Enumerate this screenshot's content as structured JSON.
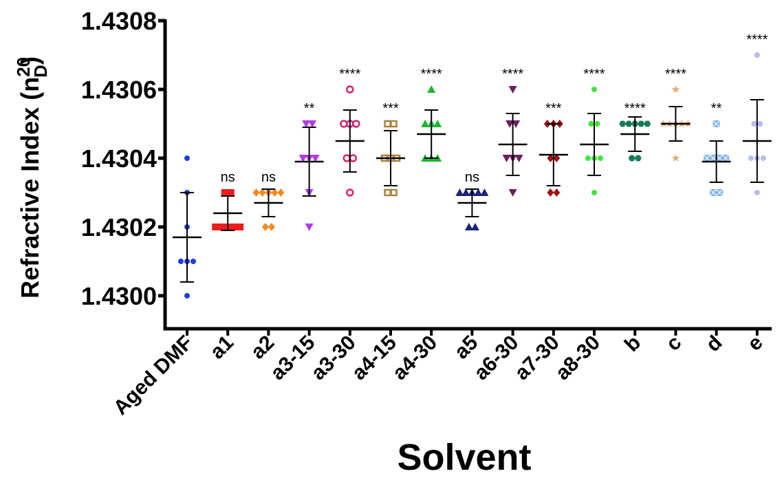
{
  "chart_data": {
    "type": "scatter",
    "xlabel": "Solvent",
    "ylabel": {
      "text": "Refractive Index (n",
      "sup": "20",
      "sub": "D",
      "close": ")"
    },
    "ylim": [
      1.42999,
      1.4308
    ],
    "yticks": [
      "1.4300",
      "1.4302",
      "1.4304",
      "1.4306",
      "1.4308"
    ],
    "ytick_values": [
      1.43,
      1.4302,
      1.4304,
      1.4306,
      1.4308
    ],
    "grid": false,
    "legend": "none",
    "categories": [
      {
        "label": "Aged DMF",
        "marker": "circle",
        "color": "#1f3fe0",
        "mean": 1.43017,
        "sd": 0.00013,
        "sig": "",
        "points": [
          1.4304,
          1.4303,
          1.4302,
          1.4301,
          1.4301,
          1.4301,
          1.43
        ]
      },
      {
        "label": "a1",
        "marker": "square",
        "color": "#ee1c1c",
        "mean": 1.43024,
        "sd": 5e-05,
        "sig": "ns",
        "points": [
          1.4303,
          1.4303,
          1.4302,
          1.4302,
          1.4302,
          1.4302,
          1.4302
        ]
      },
      {
        "label": "a2",
        "marker": "diamond",
        "color": "#f58a1f",
        "mean": 1.43027,
        "sd": 4e-05,
        "sig": "ns",
        "points": [
          1.4303,
          1.4303,
          1.4303,
          1.4303,
          1.4303,
          1.4302,
          1.4302
        ]
      },
      {
        "label": "a3-15",
        "marker": "triangle-down",
        "color": "#b23ae8",
        "mean": 1.43039,
        "sd": 0.0001,
        "sig": "**",
        "points": [
          1.4305,
          1.4305,
          1.4304,
          1.4304,
          1.4304,
          1.4303,
          1.4302
        ]
      },
      {
        "label": "a3-30",
        "marker": "open-circle",
        "color": "#d6246e",
        "mean": 1.43045,
        "sd": 9e-05,
        "sig": "****",
        "points": [
          1.4306,
          1.4305,
          1.4305,
          1.4305,
          1.4304,
          1.4304,
          1.4303
        ]
      },
      {
        "label": "a4-15",
        "marker": "open-square",
        "color": "#a8823a",
        "mean": 1.4304,
        "sd": 8e-05,
        "sig": "***",
        "points": [
          1.4305,
          1.4305,
          1.4304,
          1.4304,
          1.4304,
          1.4303,
          1.4303
        ]
      },
      {
        "label": "a4-30",
        "marker": "triangle-up",
        "color": "#19b532",
        "mean": 1.43047,
        "sd": 7e-05,
        "sig": "****",
        "points": [
          1.4306,
          1.4305,
          1.4305,
          1.4305,
          1.4304,
          1.4304,
          1.4304
        ]
      },
      {
        "label": "a5",
        "marker": "triangle-up",
        "color": "#1a237e",
        "mean": 1.43027,
        "sd": 4e-05,
        "sig": "ns",
        "points": [
          1.4303,
          1.4303,
          1.4303,
          1.4303,
          1.4303,
          1.4302,
          1.4302
        ]
      },
      {
        "label": "a6-30",
        "marker": "triangle-down",
        "color": "#6b1f5e",
        "mean": 1.43044,
        "sd": 9e-05,
        "sig": "****",
        "points": [
          1.4306,
          1.4305,
          1.4305,
          1.4304,
          1.4304,
          1.4304,
          1.4303
        ]
      },
      {
        "label": "a7-30",
        "marker": "diamond",
        "color": "#9e1111",
        "mean": 1.43041,
        "sd": 9e-05,
        "sig": "***",
        "points": [
          1.4305,
          1.4305,
          1.4305,
          1.4304,
          1.4304,
          1.4303,
          1.4303
        ]
      },
      {
        "label": "a8-30",
        "marker": "circle",
        "color": "#3ee63a",
        "mean": 1.43044,
        "sd": 9e-05,
        "sig": "****",
        "points": [
          1.4306,
          1.4305,
          1.4305,
          1.4304,
          1.4304,
          1.4304,
          1.4303
        ]
      },
      {
        "label": "b",
        "marker": "hexagon",
        "color": "#157a55",
        "mean": 1.43047,
        "sd": 5e-05,
        "sig": "****",
        "points": [
          1.4305,
          1.4305,
          1.4305,
          1.4305,
          1.4305,
          1.4304,
          1.4304
        ]
      },
      {
        "label": "c",
        "marker": "star",
        "color": "#e0b07a",
        "mean": 1.4305,
        "sd": 5e-05,
        "sig": "****",
        "points": [
          1.4306,
          1.4305,
          1.4305,
          1.4305,
          1.4305,
          1.4305,
          1.4304
        ]
      },
      {
        "label": "d",
        "marker": "cross-square",
        "color": "#7fb3e8",
        "mean": 1.43039,
        "sd": 6e-05,
        "sig": "**",
        "points": [
          1.4305,
          1.4304,
          1.4304,
          1.4304,
          1.4304,
          1.4303,
          1.4303
        ]
      },
      {
        "label": "e",
        "marker": "circle",
        "color": "#b7bbf0",
        "mean": 1.43045,
        "sd": 0.00012,
        "sig": "****",
        "points": [
          1.4307,
          1.4305,
          1.4305,
          1.4304,
          1.4304,
          1.4304,
          1.4303
        ]
      }
    ]
  }
}
